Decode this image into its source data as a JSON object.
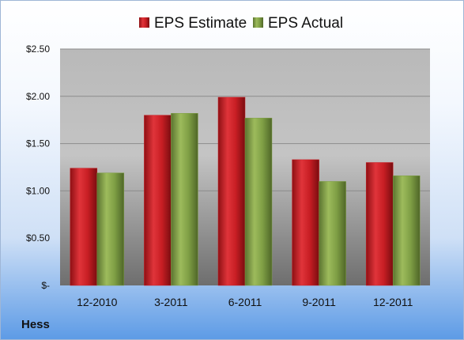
{
  "company": "Hess",
  "colors": {
    "estimate": "#c81e24",
    "actual": "#7f9f45"
  },
  "chart_data": {
    "type": "bar",
    "categories": [
      "12-2010",
      "3-2011",
      "6-2011",
      "9-2011",
      "12-2011"
    ],
    "series": [
      {
        "name": "EPS Estimate",
        "values": [
          1.24,
          1.8,
          1.99,
          1.33,
          1.3
        ]
      },
      {
        "name": "EPS Actual",
        "values": [
          1.19,
          1.82,
          1.77,
          1.1,
          1.16
        ]
      }
    ],
    "ylim": [
      0,
      2.5
    ],
    "yticks": [
      0,
      0.5,
      1.0,
      1.5,
      2.0,
      2.5
    ],
    "ytick_labels": [
      "$-",
      "$0.50",
      "$1.00",
      "$1.50",
      "$2.00",
      "$2.50"
    ],
    "grid": true,
    "legend_position": "top"
  }
}
